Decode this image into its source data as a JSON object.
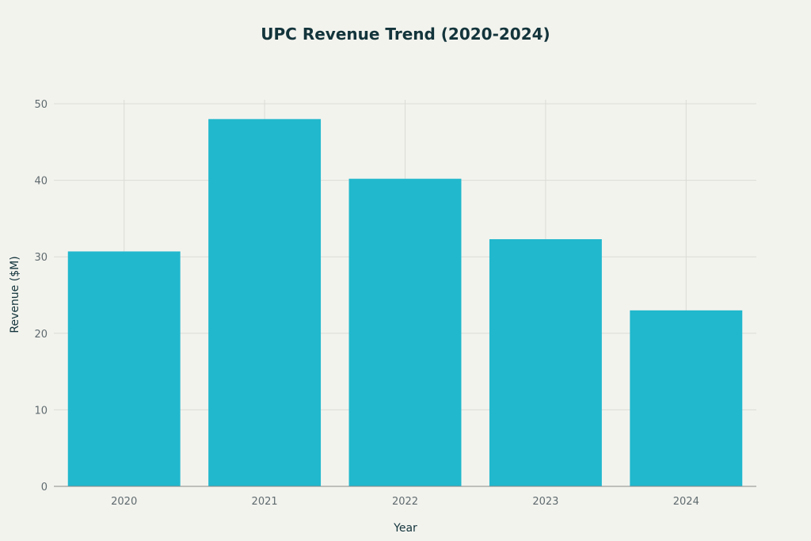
{
  "chart_data": {
    "type": "bar",
    "title": "UPC Revenue Trend (2020-2024)",
    "xlabel": "Year",
    "ylabel": "Revenue ($M)",
    "categories": [
      "2020",
      "2021",
      "2022",
      "2023",
      "2024"
    ],
    "values": [
      30.7,
      48.0,
      40.2,
      32.3,
      23.0
    ],
    "ylim": [
      0,
      50
    ],
    "yticks": [
      "0",
      "10",
      "20",
      "30",
      "40",
      "50"
    ],
    "grid": true,
    "bar_color": "#21b8cd",
    "background": "#f3f3ee"
  }
}
